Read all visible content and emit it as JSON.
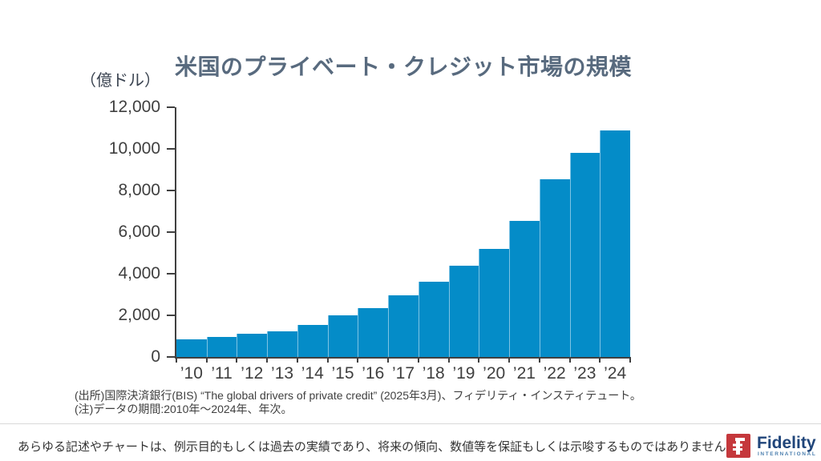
{
  "chart_data": {
    "type": "bar",
    "title": "米国のプライベート・クレジット市場の規模",
    "unit_label": "（億ドル）",
    "categories": [
      "’10",
      "’11",
      "’12",
      "’13",
      "’14",
      "’15",
      "’16",
      "’17",
      "’18",
      "’19",
      "’20",
      "’21",
      "’22",
      "’23",
      "’24"
    ],
    "values": [
      850,
      950,
      1100,
      1250,
      1550,
      2000,
      2350,
      2950,
      3600,
      4400,
      5200,
      6550,
      8550,
      9800,
      10900
    ],
    "xlabel": "",
    "ylabel": "（億ドル）",
    "ylim": [
      0,
      12000
    ],
    "ytick_interval": 2000,
    "grid": false,
    "legend": "none",
    "bar_color": "#048CC8",
    "bar_divider_color": "#7EC3E4",
    "axis_color": "#404040"
  },
  "source": {
    "line1": "(出所)国際決済銀行(BIS) “The global drivers of private credit” (2025年3月)、フィデリティ・インスティテュート。",
    "line2": "(注)データの期間:2010年～2024年、年次。"
  },
  "footer": {
    "disclaimer": "あらゆる記述やチャートは、例示目的もしくは過去の実績であり、将来の傾向、数値等を保証もしくは示唆するものではありません。",
    "logo": {
      "wordmark": "Fidelity",
      "subtext": "INTERNATIONAL",
      "square_color": "#C5383C",
      "wordmark_color": "#20457A",
      "subtext_color": "#4E81B0"
    }
  }
}
